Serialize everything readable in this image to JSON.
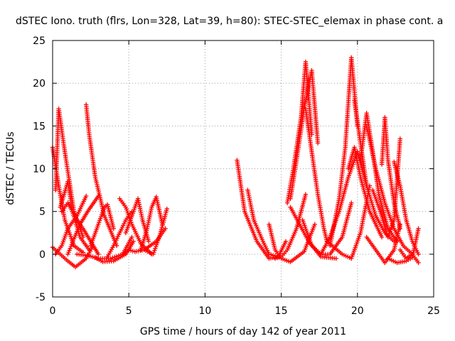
{
  "chart_data": {
    "type": "scatter",
    "title": "dSTEC Iono. truth (flrs, Lon=328, Lat=39, h=80): STEC-STEC_elemax in phase cont. a",
    "xlabel": "GPS time / hours of day 142 of year 2011",
    "ylabel": "dSTEC  / TECUs",
    "xlim": [
      0,
      25
    ],
    "ylim": [
      -5,
      25
    ],
    "x_ticks": [
      "0",
      "5",
      "10",
      "15",
      "20",
      "25"
    ],
    "y_ticks": [
      "-5",
      "0",
      "5",
      "10",
      "15",
      "20",
      "25"
    ],
    "grid": true,
    "marker": "plus",
    "color": "#ff0000",
    "series": [
      {
        "x": [
          0.0,
          0.4,
          0.8,
          1.4,
          2.0
        ],
        "y": [
          12.5,
          8.0,
          4.0,
          1.0,
          0.2
        ]
      },
      {
        "x": [
          0.0,
          0.5,
          1.0,
          1.5,
          2.2,
          2.6
        ],
        "y": [
          0.8,
          0.0,
          -0.8,
          -1.5,
          -0.5,
          0.8
        ]
      },
      {
        "x": [
          0.2,
          0.4,
          0.8,
          1.4,
          2.0
        ],
        "y": [
          7.5,
          17.0,
          12.0,
          5.0,
          2.0
        ]
      },
      {
        "x": [
          0.2,
          0.6,
          1.0,
          1.6,
          2.2
        ],
        "y": [
          0.0,
          1.0,
          3.0,
          4.5,
          6.8
        ]
      },
      {
        "x": [
          0.5,
          1.0,
          1.3,
          1.8,
          2.4
        ],
        "y": [
          5.5,
          8.5,
          5.0,
          2.0,
          0.5
        ]
      },
      {
        "x": [
          0.6,
          1.0,
          1.6,
          2.0,
          3.0
        ],
        "y": [
          5.0,
          6.0,
          4.0,
          3.0,
          0.0
        ]
      },
      {
        "x": [
          1.0,
          1.4,
          1.8,
          2.3,
          3.0
        ],
        "y": [
          0.0,
          1.8,
          3.5,
          5.0,
          6.8
        ]
      },
      {
        "x": [
          2.2,
          2.4,
          2.8,
          3.4,
          4.2
        ],
        "y": [
          17.5,
          14.0,
          9.0,
          4.5,
          1.0
        ]
      },
      {
        "x": [
          1.6,
          2.4,
          3.0,
          3.8,
          4.6,
          5.2
        ],
        "y": [
          0.0,
          -0.2,
          -0.5,
          -0.5,
          0.0,
          2.0
        ]
      },
      {
        "x": [
          2.8,
          3.3,
          4.0,
          4.8,
          5.3
        ],
        "y": [
          -0.4,
          -0.9,
          -0.8,
          0.0,
          1.5
        ]
      },
      {
        "x": [
          2.5,
          3.0,
          3.4,
          3.6,
          4.0
        ],
        "y": [
          1.0,
          3.5,
          5.5,
          5.8,
          3.0
        ]
      },
      {
        "x": [
          3.6,
          4.0,
          4.4,
          4.8,
          5.2
        ],
        "y": [
          -0.3,
          1.0,
          2.5,
          4.0,
          5.0
        ]
      },
      {
        "x": [
          4.4,
          4.8,
          5.2,
          5.8,
          6.5
        ],
        "y": [
          6.5,
          5.5,
          3.5,
          1.2,
          0.0
        ]
      },
      {
        "x": [
          4.6,
          5.0,
          5.4,
          6.0,
          6.8,
          7.4
        ],
        "y": [
          0.0,
          0.5,
          0.3,
          0.5,
          1.5,
          3.0
        ]
      },
      {
        "x": [
          4.8,
          5.3,
          5.6,
          5.9,
          6.3
        ],
        "y": [
          2.5,
          5.0,
          6.5,
          4.0,
          1.5
        ]
      },
      {
        "x": [
          5.8,
          6.2,
          6.5,
          6.8,
          7.2
        ],
        "y": [
          0.5,
          3.0,
          5.5,
          6.7,
          3.5
        ]
      },
      {
        "x": [
          6.0,
          6.6,
          7.0,
          7.5
        ],
        "y": [
          0.5,
          0.0,
          2.0,
          5.3
        ]
      },
      {
        "x": [
          12.1,
          12.6,
          13.4,
          14.2,
          14.8,
          15.3
        ],
        "y": [
          11.0,
          5.0,
          1.5,
          -0.5,
          -0.3,
          1.5
        ]
      },
      {
        "x": [
          12.8,
          13.2,
          13.8,
          14.2,
          14.6
        ],
        "y": [
          7.5,
          4.0,
          1.5,
          0.0,
          -0.2
        ]
      },
      {
        "x": [
          14.2,
          14.6,
          15.0,
          15.6,
          16.5,
          17.2
        ],
        "y": [
          3.5,
          0.5,
          -0.5,
          -0.9,
          0.3,
          3.5
        ]
      },
      {
        "x": [
          14.6,
          15.0,
          15.4,
          16.0,
          16.6
        ],
        "y": [
          -0.5,
          -0.3,
          0.5,
          3.0,
          7.0
        ]
      },
      {
        "x": [
          15.4,
          15.8,
          16.3,
          16.6,
          17.0
        ],
        "y": [
          6.0,
          10.0,
          16.0,
          22.5,
          14.0
        ]
      },
      {
        "x": [
          15.6,
          16.0,
          16.5,
          17.0,
          17.4
        ],
        "y": [
          6.5,
          11.0,
          17.0,
          21.5,
          13.0
        ]
      },
      {
        "x": [
          15.6,
          16.2,
          16.8,
          17.6,
          18.6
        ],
        "y": [
          5.5,
          3.5,
          1.5,
          -0.3,
          -0.5
        ]
      },
      {
        "x": [
          16.4,
          17.0,
          17.6,
          18.2,
          19.0,
          19.6
        ],
        "y": [
          4.0,
          1.0,
          0.0,
          0.0,
          2.0,
          6.0
        ]
      },
      {
        "x": [
          16.6,
          17.0,
          17.4,
          17.8,
          18.0
        ],
        "y": [
          17.0,
          12.0,
          7.0,
          3.0,
          1.5
        ]
      },
      {
        "x": [
          17.6,
          18.2,
          18.8,
          19.4,
          20.0,
          20.6
        ],
        "y": [
          0.0,
          2.0,
          5.0,
          9.0,
          12.0,
          8.0
        ]
      },
      {
        "x": [
          18.2,
          18.8,
          19.2,
          19.6,
          20.0
        ],
        "y": [
          1.0,
          6.5,
          12.5,
          23.0,
          15.0
        ]
      },
      {
        "x": [
          18.0,
          19.0,
          19.6,
          20.2,
          20.8
        ],
        "y": [
          1.5,
          0.0,
          -0.5,
          2.5,
          8.0
        ]
      },
      {
        "x": [
          19.4,
          19.8,
          20.2,
          20.8,
          21.6
        ],
        "y": [
          10.0,
          12.5,
          9.0,
          5.0,
          2.0
        ]
      },
      {
        "x": [
          19.8,
          20.2,
          20.6,
          21.2,
          21.8,
          22.4
        ],
        "y": [
          18.0,
          13.0,
          8.0,
          4.5,
          2.5,
          1.5
        ]
      },
      {
        "x": [
          20.2,
          20.6,
          21.0,
          21.4,
          22.0,
          22.6
        ],
        "y": [
          11.0,
          16.5,
          12.0,
          7.0,
          3.0,
          1.5
        ]
      },
      {
        "x": [
          20.6,
          21.2,
          21.8,
          22.4,
          23.0,
          23.6
        ],
        "y": [
          15.0,
          10.0,
          6.0,
          3.0,
          1.0,
          0.0
        ]
      },
      {
        "x": [
          20.6,
          21.2,
          21.8,
          22.4,
          22.8
        ],
        "y": [
          2.0,
          0.5,
          -1.0,
          0.5,
          3.5
        ]
      },
      {
        "x": [
          21.0,
          21.5,
          22.0,
          22.4,
          22.8
        ],
        "y": [
          7.5,
          5.0,
          2.0,
          4.0,
          13.5
        ]
      },
      {
        "x": [
          21.6,
          21.8,
          22.0,
          22.4,
          22.8
        ],
        "y": [
          10.5,
          16.0,
          11.0,
          6.0,
          3.0
        ]
      },
      {
        "x": [
          22.4,
          22.8,
          23.2,
          23.6,
          24.0
        ],
        "y": [
          10.8,
          8.0,
          4.0,
          1.5,
          0.0
        ]
      },
      {
        "x": [
          22.0,
          22.6,
          23.2,
          23.6,
          24.0
        ],
        "y": [
          -0.5,
          -1.0,
          -0.8,
          -0.4,
          3.0
        ]
      },
      {
        "x": [
          22.8,
          23.2,
          23.6,
          24.0
        ],
        "y": [
          0.5,
          -0.5,
          0.0,
          -1.0
        ]
      }
    ]
  }
}
